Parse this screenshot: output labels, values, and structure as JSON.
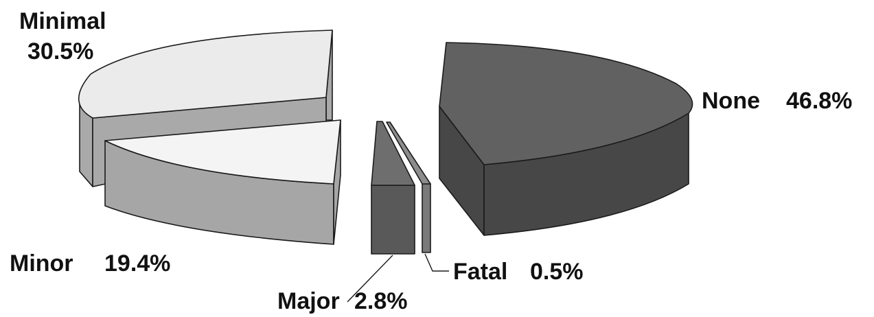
{
  "chart_data": {
    "type": "pie",
    "style": "3d-exploded",
    "title": "",
    "slices": [
      {
        "label": "None",
        "value_text": "46.8%",
        "value": 46.8,
        "top_color": "#616161",
        "side_color": "#474747"
      },
      {
        "label": "Minimal",
        "value_text": "30.5%",
        "value": 30.5,
        "top_color": "#ebebeb",
        "side_color": "#a9a9a9"
      },
      {
        "label": "Minor",
        "value_text": "19.4%",
        "value": 19.4,
        "top_color": "#f4f4f4",
        "side_color": "#a6a6a6"
      },
      {
        "label": "Major",
        "value_text": "2.8%",
        "value": 2.8,
        "top_color": "#6e6e6e",
        "side_color": "#595959"
      },
      {
        "label": "Fatal",
        "value_text": "0.5%",
        "value": 0.5,
        "top_color": "#8c8c8c",
        "side_color": "#7a7a7a"
      }
    ],
    "legend": "none"
  }
}
